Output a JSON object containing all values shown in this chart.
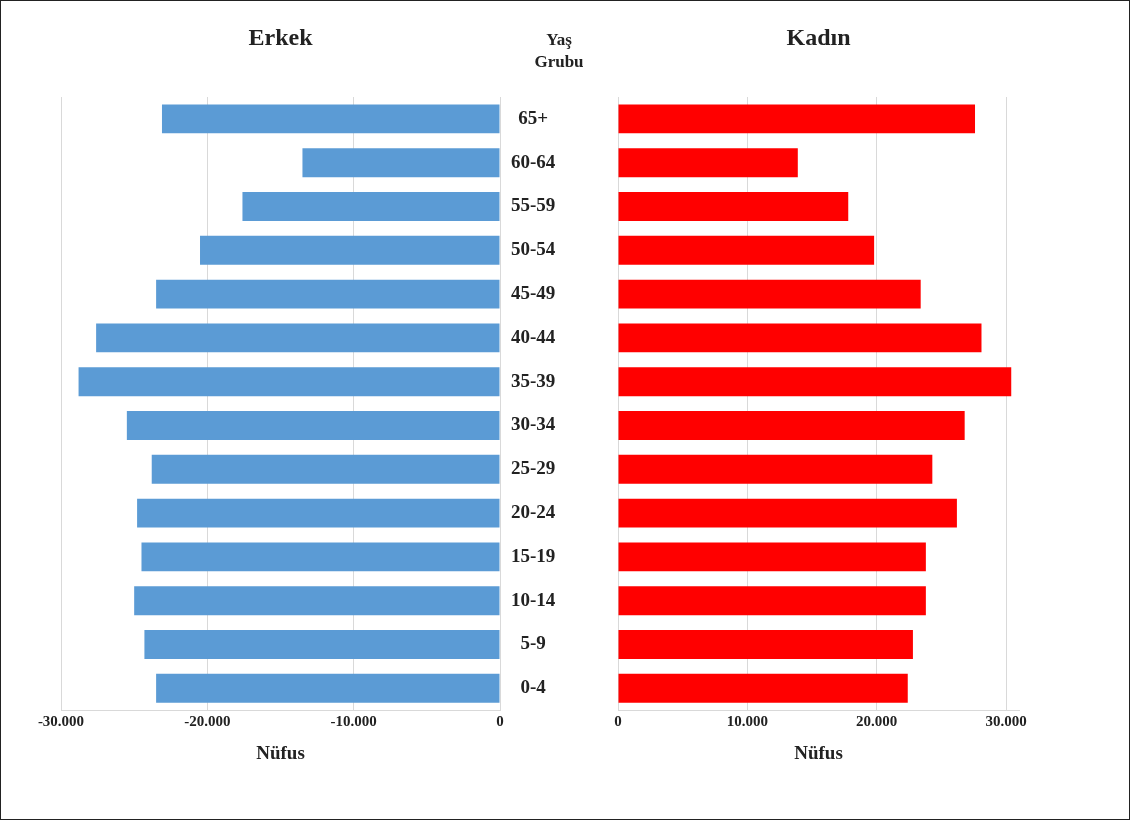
{
  "chart_data": [
    {
      "type": "bar",
      "orientation": "horizontal",
      "title": "Erkek",
      "xlabel": "Nüfus",
      "ylabel": "Yaş Grubu",
      "color": "#5b9bd5",
      "grid": "x",
      "categories": [
        "65+",
        "60-64",
        "55-59",
        "50-54",
        "45-49",
        "40-44",
        "35-39",
        "30-34",
        "25-29",
        "20-24",
        "15-19",
        "10-14",
        "5-9",
        "0-4"
      ],
      "values": [
        -23100,
        -13500,
        -17600,
        -20500,
        -23500,
        -27600,
        -28800,
        -25500,
        -23800,
        -24800,
        -24500,
        -25000,
        -24300,
        -23500
      ],
      "xlim": [
        -30000,
        0
      ],
      "xticks": [
        {
          "value": -30000,
          "label": "-30.000"
        },
        {
          "value": -20000,
          "label": "-20.000"
        },
        {
          "value": -10000,
          "label": "-10.000"
        },
        0
      ]
    },
    {
      "type": "bar",
      "orientation": "horizontal",
      "title": "Kadın",
      "xlabel": "Nüfus",
      "color": "#ff0000",
      "grid": "x",
      "categories": [
        null,
        null,
        null,
        null,
        null,
        null,
        null,
        null,
        null,
        null,
        null,
        null,
        null,
        null
      ],
      "values": [
        27600,
        13900,
        17800,
        19800,
        23400,
        28100,
        30400,
        26800,
        24300,
        26200,
        23800,
        23800,
        22800,
        22400
      ],
      "xlim": [
        0,
        31000
      ],
      "xticks": [
        0,
        {
          "value": 10000,
          "label": "10.000"
        },
        {
          "value": 20000,
          "label": "20.000"
        },
        {
          "value": 30000,
          "label": "30.000"
        }
      ]
    }
  ]
}
